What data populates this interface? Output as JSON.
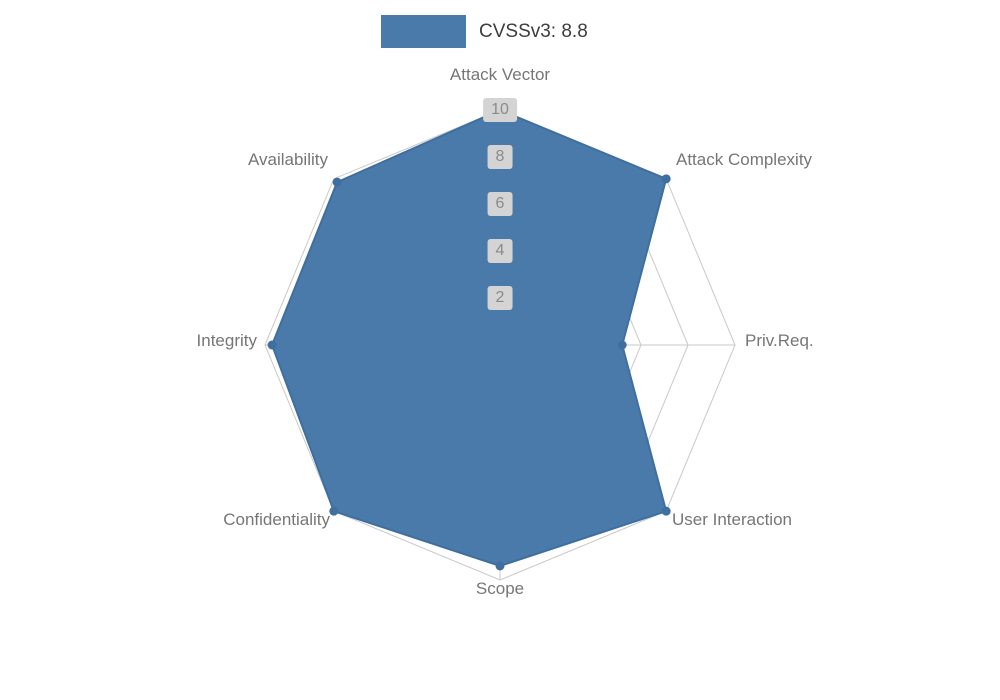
{
  "chart_data": {
    "type": "radar",
    "title": "CVSSv3: 8.8",
    "legend_label": "CVSSv3: 8.8",
    "categories": [
      "Attack Vector",
      "Attack Complexity",
      "Priv.Req.",
      "User Interaction",
      "Scope",
      "Confidentiality",
      "Integrity",
      "Availability"
    ],
    "values": [
      10,
      10,
      5.2,
      10,
      9.4,
      10,
      9.7,
      9.8
    ],
    "rmax": 10,
    "ticks": [
      2,
      4,
      6,
      8,
      10
    ],
    "grid_shape": "octagon",
    "legend_position": "top-center",
    "colors": {
      "fill": "#4a7aa9",
      "stroke": "#3e6f9e",
      "marker": "#3e6f9e",
      "grid": "#c9c9c9",
      "axis_label": "#767676",
      "tick_label": "#8a8a8a",
      "tick_bg": "#d4d4d4",
      "legend_text": "#3d3d3d"
    }
  }
}
